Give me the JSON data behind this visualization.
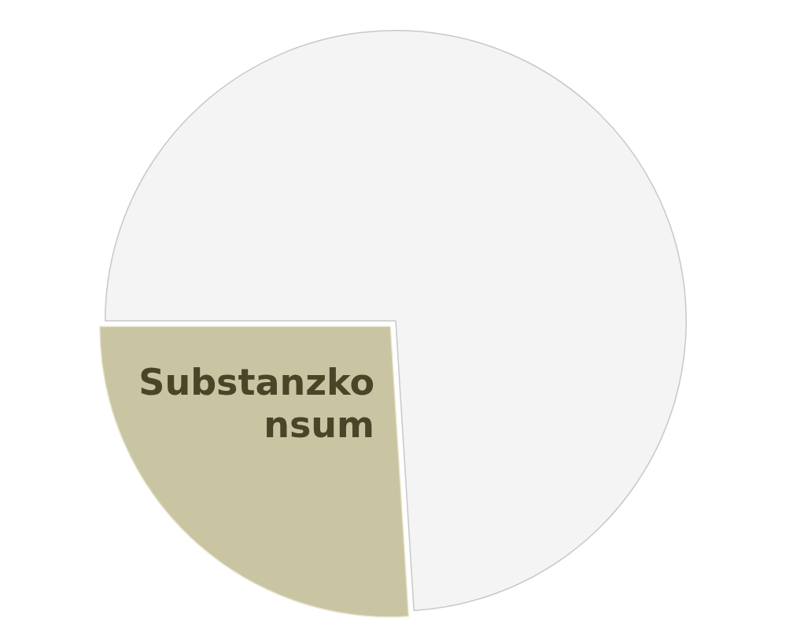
{
  "chart_data": {
    "type": "pie",
    "categories": [
      "Substanzkonsum",
      null
    ],
    "values": [
      26,
      74
    ],
    "colors": [
      "#c9c4a2",
      "#f4f4f4"
    ],
    "legend": false
  }
}
